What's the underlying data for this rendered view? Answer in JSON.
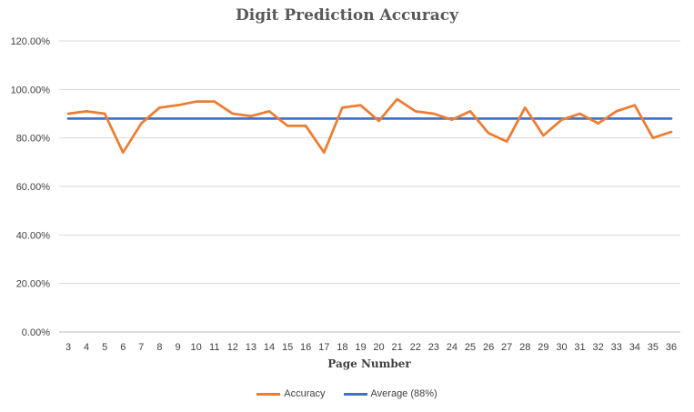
{
  "chart_data": {
    "type": "line",
    "title": "Digit Prediction Accuracy",
    "xlabel": "Page Number",
    "ylabel": "",
    "categories": [
      "3",
      "4",
      "5",
      "6",
      "7",
      "8",
      "9",
      "10",
      "11",
      "12",
      "13",
      "14",
      "15",
      "16",
      "17",
      "18",
      "19",
      "20",
      "21",
      "22",
      "23",
      "24",
      "25",
      "26",
      "27",
      "28",
      "29",
      "30",
      "31",
      "32",
      "33",
      "34",
      "35",
      "36"
    ],
    "ylim": [
      0,
      1.2
    ],
    "yticks": [
      "0.00%",
      "20.00%",
      "40.00%",
      "60.00%",
      "80.00%",
      "100.00%",
      "120.00%"
    ],
    "grid": true,
    "legend_position": "bottom",
    "series": [
      {
        "name": "Accuracy",
        "color": "#ED7D31",
        "values": [
          0.9,
          0.91,
          0.9,
          0.74,
          0.86,
          0.925,
          0.935,
          0.95,
          0.95,
          0.9,
          0.89,
          0.91,
          0.85,
          0.85,
          0.74,
          0.925,
          0.935,
          0.87,
          0.96,
          0.91,
          0.9,
          0.875,
          0.91,
          0.82,
          0.785,
          0.925,
          0.81,
          0.875,
          0.9,
          0.86,
          0.91,
          0.935,
          0.8,
          0.825
        ]
      },
      {
        "name": "Average (88%)",
        "color": "#4472C4",
        "values": [
          0.88,
          0.88,
          0.88,
          0.88,
          0.88,
          0.88,
          0.88,
          0.88,
          0.88,
          0.88,
          0.88,
          0.88,
          0.88,
          0.88,
          0.88,
          0.88,
          0.88,
          0.88,
          0.88,
          0.88,
          0.88,
          0.88,
          0.88,
          0.88,
          0.88,
          0.88,
          0.88,
          0.88,
          0.88,
          0.88,
          0.88,
          0.88,
          0.88,
          0.88
        ]
      }
    ]
  }
}
